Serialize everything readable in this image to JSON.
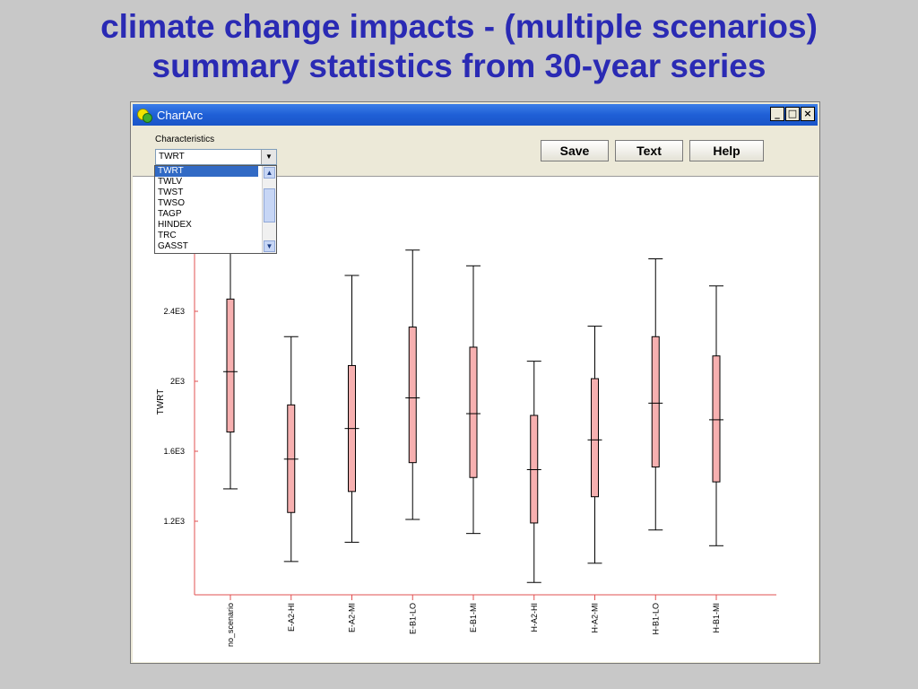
{
  "slide": {
    "title_line1": "climate change impacts -  (multiple scenarios)",
    "title_line2": "summary statistics from 30-year series"
  },
  "window": {
    "title": "ChartArc",
    "icon": "chartarc-app-icon",
    "controls": {
      "minimize": "_",
      "maximize": "□",
      "close": "×"
    }
  },
  "toolbar": {
    "characteristics_label": "Characteristics",
    "selected_value": "TWRT",
    "save_label": "Save",
    "text_label": "Text",
    "help_label": "Help"
  },
  "dropdown": {
    "items": [
      "TWRT",
      "TWLV",
      "TWST",
      "TWSO",
      "TAGP",
      "HINDEX",
      "TRC",
      "GASST"
    ],
    "selected_index": 0
  },
  "chart_data": {
    "type": "boxplot",
    "ylabel": "TWRT",
    "xlabel": "",
    "ylim": [
      900,
      3200
    ],
    "yticks": [
      1200,
      1600,
      2000,
      2400
    ],
    "ytick_labels": [
      "1.2E3",
      "1.6E3",
      "2E3",
      "2.4E3"
    ],
    "categories": [
      "no_scenario",
      "E-A2-HI",
      "E-A2-MI",
      "E-B1-LO",
      "E-B1-MI",
      "H-A2-HI",
      "H-A2-MI",
      "H-B1-LO",
      "H-B1-MI"
    ],
    "series": [
      {
        "min": 1385,
        "q1": 1710,
        "median": 2055,
        "q3": 2470,
        "max": 3080
      },
      {
        "min": 970,
        "q1": 1250,
        "median": 1555,
        "q3": 1865,
        "max": 2255
      },
      {
        "min": 1080,
        "q1": 1370,
        "median": 1730,
        "q3": 2090,
        "max": 2605
      },
      {
        "min": 1210,
        "q1": 1535,
        "median": 1905,
        "q3": 2310,
        "max": 2750
      },
      {
        "min": 1130,
        "q1": 1450,
        "median": 1815,
        "q3": 2195,
        "max": 2660
      },
      {
        "min": 850,
        "q1": 1190,
        "median": 1495,
        "q3": 1805,
        "max": 2115
      },
      {
        "min": 960,
        "q1": 1340,
        "median": 1665,
        "q3": 2015,
        "max": 2315
      },
      {
        "min": 1150,
        "q1": 1510,
        "median": 1875,
        "q3": 2255,
        "max": 2700
      },
      {
        "min": 1060,
        "q1": 1425,
        "median": 1780,
        "q3": 2145,
        "max": 2545
      }
    ],
    "colors": {
      "box_fill": "#f7b0b0",
      "axis": "#e05050",
      "whisker": "#000000"
    },
    "grid": false
  }
}
